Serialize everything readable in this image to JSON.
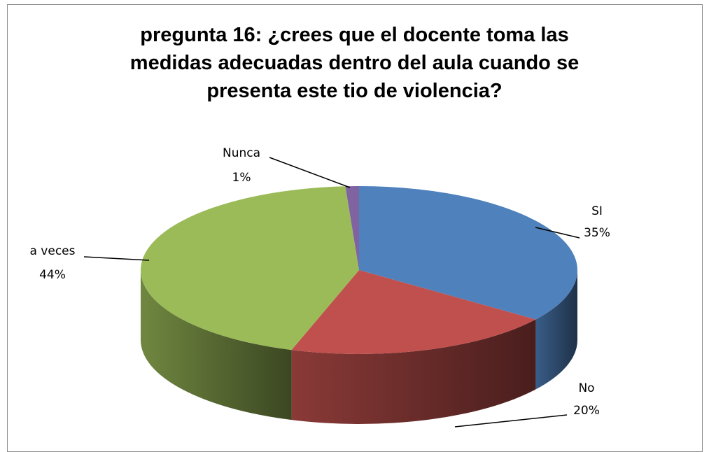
{
  "chart_data": {
    "type": "pie",
    "title": "pregunta 16: ¿crees que el docente toma las\nmedidas adecuadas dentro del aula cuando se\npresenta este tio de violencia?",
    "slices": [
      {
        "label": "SI",
        "percent_label": "35%",
        "value": 35,
        "color": "#4F81BD"
      },
      {
        "label": "No",
        "percent_label": "20%",
        "value": 20,
        "color": "#C0504D"
      },
      {
        "label": "a veces",
        "percent_label": "44%",
        "value": 44,
        "color": "#9BBB59"
      },
      {
        "label": "Nunca",
        "percent_label": "1%",
        "value": 1,
        "color": "#8064A2"
      }
    ]
  }
}
